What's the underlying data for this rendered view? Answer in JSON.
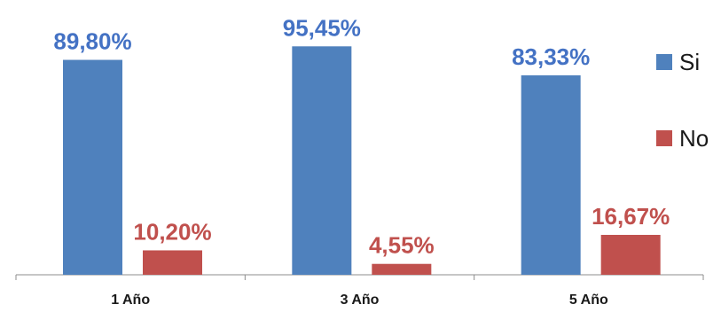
{
  "chart_data": {
    "type": "bar",
    "categories": [
      "1 Año",
      "3 Año",
      "5 Año"
    ],
    "series": [
      {
        "name": "Si",
        "color": "#4f81bd",
        "label_color": "#4472c4",
        "values": [
          89.8,
          95.45,
          83.33
        ],
        "labels": [
          "89,80%",
          "95,45%",
          "83,33%"
        ]
      },
      {
        "name": "No",
        "color": "#c0504d",
        "label_color": "#c0504d",
        "values": [
          10.2,
          4.55,
          16.67
        ],
        "labels": [
          "10,20%",
          "4,55%",
          "16,67%"
        ]
      }
    ],
    "ylim": [
      0,
      100
    ],
    "grid": false,
    "legend": "right"
  }
}
